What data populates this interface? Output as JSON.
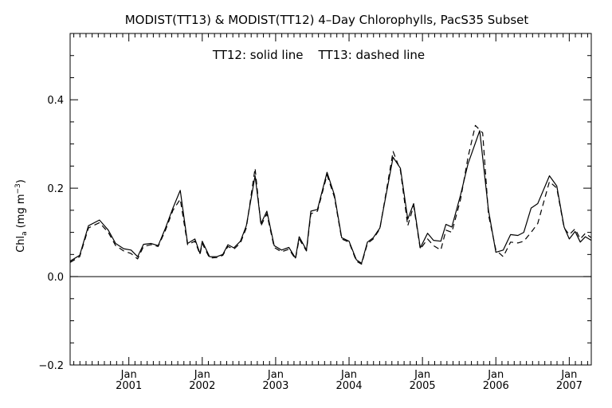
{
  "chart_data": {
    "type": "line",
    "title": "MODIST(TT13) & MODIST(TT12) 4–Day Chlorophylls, PacS35 Subset",
    "annotation": "TT12: solid line    TT13: dashed line",
    "ylabel": {
      "base": "Chl",
      "subscript": "a",
      "unit_open": " (mg m",
      "unit_sup": "−3",
      "unit_close": ")"
    },
    "xlim": [
      2000.2,
      2007.3
    ],
    "ylim": [
      -0.2,
      0.55
    ],
    "grid": false,
    "y_ticks": [
      {
        "value": 0.4,
        "label": "0.4"
      },
      {
        "value": 0.2,
        "label": "0.2"
      },
      {
        "value": 0.0,
        "label": "0.0"
      },
      {
        "value": -0.2,
        "label": "−0.2"
      }
    ],
    "x_ticks": [
      {
        "value": 2001.0,
        "month": "Jan",
        "year": "2001"
      },
      {
        "value": 2002.0,
        "month": "Jan",
        "year": "2002"
      },
      {
        "value": 2003.0,
        "month": "Jan",
        "year": "2003"
      },
      {
        "value": 2004.0,
        "month": "Jan",
        "year": "2004"
      },
      {
        "value": 2005.0,
        "month": "Jan",
        "year": "2005"
      },
      {
        "value": 2006.0,
        "month": "Jan",
        "year": "2006"
      },
      {
        "value": 2007.0,
        "month": "Jan",
        "year": "2007"
      }
    ],
    "reference_line": 0.0,
    "series": [
      {
        "style": "solid",
        "points": [
          [
            2000.2,
            0.035
          ],
          [
            2000.33,
            0.048
          ],
          [
            2000.45,
            0.115
          ],
          [
            2000.6,
            0.128
          ],
          [
            2000.72,
            0.105
          ],
          [
            2000.82,
            0.075
          ],
          [
            2000.93,
            0.063
          ],
          [
            2001.03,
            0.06
          ],
          [
            2001.12,
            0.045
          ],
          [
            2001.2,
            0.073
          ],
          [
            2001.3,
            0.075
          ],
          [
            2001.4,
            0.07
          ],
          [
            2001.5,
            0.11
          ],
          [
            2001.6,
            0.155
          ],
          [
            2001.7,
            0.195
          ],
          [
            2001.8,
            0.075
          ],
          [
            2001.9,
            0.085
          ],
          [
            2001.97,
            0.052
          ],
          [
            2002.0,
            0.08
          ],
          [
            2002.1,
            0.045
          ],
          [
            2002.2,
            0.045
          ],
          [
            2002.28,
            0.05
          ],
          [
            2002.35,
            0.072
          ],
          [
            2002.43,
            0.065
          ],
          [
            2002.52,
            0.08
          ],
          [
            2002.6,
            0.115
          ],
          [
            2002.72,
            0.228
          ],
          [
            2002.8,
            0.12
          ],
          [
            2002.88,
            0.148
          ],
          [
            2002.98,
            0.07
          ],
          [
            2003.08,
            0.06
          ],
          [
            2003.18,
            0.066
          ],
          [
            2003.27,
            0.042
          ],
          [
            2003.32,
            0.09
          ],
          [
            2003.42,
            0.06
          ],
          [
            2003.48,
            0.148
          ],
          [
            2003.57,
            0.152
          ],
          [
            2003.7,
            0.236
          ],
          [
            2003.8,
            0.185
          ],
          [
            2003.9,
            0.088
          ],
          [
            2004.0,
            0.08
          ],
          [
            2004.1,
            0.038
          ],
          [
            2004.17,
            0.03
          ],
          [
            2004.25,
            0.078
          ],
          [
            2004.33,
            0.088
          ],
          [
            2004.42,
            0.11
          ],
          [
            2004.6,
            0.27
          ],
          [
            2004.7,
            0.245
          ],
          [
            2004.8,
            0.13
          ],
          [
            2004.88,
            0.165
          ],
          [
            2004.97,
            0.065
          ],
          [
            2005.07,
            0.098
          ],
          [
            2005.15,
            0.082
          ],
          [
            2005.25,
            0.08
          ],
          [
            2005.32,
            0.118
          ],
          [
            2005.4,
            0.112
          ],
          [
            2005.52,
            0.185
          ],
          [
            2005.62,
            0.255
          ],
          [
            2005.78,
            0.33
          ],
          [
            2005.9,
            0.15
          ],
          [
            2006.0,
            0.055
          ],
          [
            2006.1,
            0.06
          ],
          [
            2006.2,
            0.095
          ],
          [
            2006.3,
            0.093
          ],
          [
            2006.38,
            0.1
          ],
          [
            2006.48,
            0.155
          ],
          [
            2006.57,
            0.165
          ],
          [
            2006.73,
            0.228
          ],
          [
            2006.83,
            0.205
          ],
          [
            2006.93,
            0.112
          ],
          [
            2007.0,
            0.085
          ],
          [
            2007.08,
            0.102
          ],
          [
            2007.15,
            0.078
          ],
          [
            2007.22,
            0.09
          ],
          [
            2007.3,
            0.082
          ]
        ]
      },
      {
        "style": "dashed",
        "points": [
          [
            2000.2,
            0.032
          ],
          [
            2000.33,
            0.045
          ],
          [
            2000.45,
            0.11
          ],
          [
            2000.6,
            0.122
          ],
          [
            2000.72,
            0.1
          ],
          [
            2000.82,
            0.07
          ],
          [
            2000.93,
            0.058
          ],
          [
            2001.03,
            0.052
          ],
          [
            2001.12,
            0.04
          ],
          [
            2001.2,
            0.068
          ],
          [
            2001.3,
            0.072
          ],
          [
            2001.4,
            0.068
          ],
          [
            2001.5,
            0.105
          ],
          [
            2001.6,
            0.15
          ],
          [
            2001.7,
            0.175
          ],
          [
            2001.8,
            0.072
          ],
          [
            2001.9,
            0.08
          ],
          [
            2001.97,
            0.05
          ],
          [
            2002.0,
            0.075
          ],
          [
            2002.1,
            0.042
          ],
          [
            2002.2,
            0.043
          ],
          [
            2002.28,
            0.048
          ],
          [
            2002.35,
            0.068
          ],
          [
            2002.43,
            0.062
          ],
          [
            2002.52,
            0.076
          ],
          [
            2002.6,
            0.11
          ],
          [
            2002.72,
            0.245
          ],
          [
            2002.8,
            0.115
          ],
          [
            2002.88,
            0.142
          ],
          [
            2002.98,
            0.066
          ],
          [
            2003.08,
            0.056
          ],
          [
            2003.18,
            0.062
          ],
          [
            2003.27,
            0.04
          ],
          [
            2003.32,
            0.085
          ],
          [
            2003.42,
            0.058
          ],
          [
            2003.48,
            0.142
          ],
          [
            2003.57,
            0.148
          ],
          [
            2003.7,
            0.23
          ],
          [
            2003.8,
            0.18
          ],
          [
            2003.9,
            0.085
          ],
          [
            2004.0,
            0.078
          ],
          [
            2004.1,
            0.035
          ],
          [
            2004.17,
            0.028
          ],
          [
            2004.25,
            0.075
          ],
          [
            2004.33,
            0.085
          ],
          [
            2004.42,
            0.108
          ],
          [
            2004.6,
            0.283
          ],
          [
            2004.7,
            0.24
          ],
          [
            2004.8,
            0.115
          ],
          [
            2004.88,
            0.16
          ],
          [
            2004.97,
            0.062
          ],
          [
            2005.07,
            0.085
          ],
          [
            2005.15,
            0.07
          ],
          [
            2005.25,
            0.06
          ],
          [
            2005.32,
            0.105
          ],
          [
            2005.4,
            0.1
          ],
          [
            2005.52,
            0.175
          ],
          [
            2005.62,
            0.27
          ],
          [
            2005.72,
            0.342
          ],
          [
            2005.82,
            0.325
          ],
          [
            2005.9,
            0.14
          ],
          [
            2006.0,
            0.06
          ],
          [
            2006.1,
            0.045
          ],
          [
            2006.2,
            0.078
          ],
          [
            2006.3,
            0.076
          ],
          [
            2006.38,
            0.08
          ],
          [
            2006.48,
            0.1
          ],
          [
            2006.57,
            0.12
          ],
          [
            2006.73,
            0.215
          ],
          [
            2006.83,
            0.2
          ],
          [
            2006.93,
            0.11
          ],
          [
            2007.0,
            0.095
          ],
          [
            2007.08,
            0.108
          ],
          [
            2007.15,
            0.085
          ],
          [
            2007.22,
            0.098
          ],
          [
            2007.3,
            0.088
          ]
        ]
      }
    ]
  }
}
